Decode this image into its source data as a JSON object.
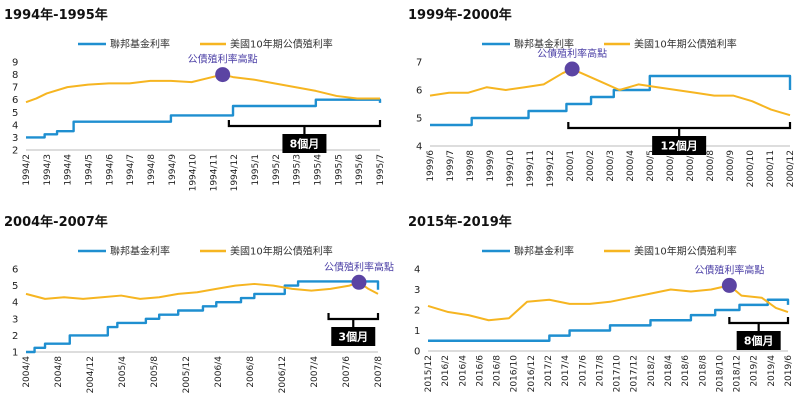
{
  "colors": {
    "fed": "#1f8fd0",
    "yield": "#f6b521",
    "peak_marker": "#5b44a3",
    "annotation_text": "#4b3fa6",
    "box_bg": "#000000"
  },
  "chart_data": [
    {
      "type": "line",
      "title": "1994年-1995年",
      "legend_position": "top-center",
      "series": [
        {
          "name": "聯邦基金利率",
          "color": "#1f8fd0",
          "step": true,
          "x": [
            0,
            0.9,
            1.5,
            2.3,
            7.0,
            10.0,
            14.0,
            17.1
          ],
          "values": [
            3.0,
            3.25,
            3.5,
            4.25,
            4.75,
            5.5,
            6.0,
            5.75
          ]
        },
        {
          "name": "美國10年期公債殖利率",
          "color": "#f6b521",
          "x": [
            0,
            0.5,
            1,
            2,
            3,
            4,
            5,
            6,
            7,
            8,
            9,
            9.5,
            10,
            11,
            12,
            13,
            14,
            15,
            16,
            17.1
          ],
          "values": [
            5.8,
            6.1,
            6.5,
            7.0,
            7.2,
            7.3,
            7.3,
            7.5,
            7.5,
            7.4,
            7.8,
            8.0,
            7.8,
            7.6,
            7.3,
            7.0,
            6.7,
            6.3,
            6.1,
            6.1
          ]
        }
      ],
      "ylim": [
        2,
        9
      ],
      "yticks": [
        2,
        3,
        4,
        5,
        6,
        7,
        8,
        9
      ],
      "xlim": [
        0,
        17.1
      ],
      "xtick_labels": [
        "1994/2",
        "1994/3",
        "1994/4",
        "1994/5",
        "1994/6",
        "1994/7",
        "1994/8",
        "1994/9",
        "1994/10",
        "1994/11",
        "1994/12",
        "1995/1",
        "1995/2",
        "1995/3",
        "1995/4",
        "1995/5",
        "1995/6",
        "1995/7"
      ],
      "peak": {
        "label": "公債殖利率高點",
        "x": 9.5,
        "y": 8.0
      },
      "bracket": {
        "x_start": 9.8,
        "x_end": 17.1,
        "label": "8個月"
      }
    },
    {
      "type": "line",
      "title": "1999年-2000年",
      "legend_position": "top-center",
      "series": [
        {
          "name": "聯邦基金利率",
          "color": "#1f8fd0",
          "step": true,
          "x": [
            0,
            2.2,
            5.2,
            7.2,
            8.5,
            9.7,
            11.6,
            19.0
          ],
          "values": [
            4.75,
            5.0,
            5.25,
            5.5,
            5.75,
            6.0,
            6.5,
            6.0
          ]
        },
        {
          "name": "美國10年期公債殖利率",
          "color": "#f6b521",
          "x": [
            0,
            1,
            2,
            3,
            4,
            5,
            6,
            7,
            7.5,
            8,
            9,
            10,
            11,
            12,
            13,
            14,
            15,
            16,
            17,
            18,
            19.0
          ],
          "values": [
            5.8,
            5.9,
            5.9,
            6.1,
            6.0,
            6.1,
            6.2,
            6.6,
            6.75,
            6.6,
            6.3,
            6.0,
            6.2,
            6.1,
            6.0,
            5.9,
            5.8,
            5.8,
            5.6,
            5.3,
            5.1
          ]
        }
      ],
      "ylim": [
        4,
        7
      ],
      "yticks": [
        4,
        5,
        6,
        7
      ],
      "xlim": [
        0,
        19.0
      ],
      "xtick_labels": [
        "1999/6",
        "1999/7",
        "1999/8",
        "1999/9",
        "1999/10",
        "1999/11",
        "1999/12",
        "2000/1",
        "2000/2",
        "2000/3",
        "2000/4",
        "2000/5",
        "2000/6",
        "2000/7",
        "2000/8",
        "2000/9",
        "2000/10",
        "2000/11",
        "2000/12"
      ],
      "peak": {
        "label": "公債殖利率高點",
        "x": 7.5,
        "y": 6.75
      },
      "bracket": {
        "x_start": 7.3,
        "x_end": 19.0,
        "label": "12個月"
      }
    },
    {
      "type": "line",
      "title": "2004年-2007年",
      "legend_position": "top-center",
      "series": [
        {
          "name": "聯邦基金利率",
          "color": "#1f8fd0",
          "step": true,
          "x": [
            0,
            0.45,
            1.0,
            2.3,
            4.3,
            4.8,
            6.3,
            7.0,
            8.0,
            9.3,
            10.0,
            11.3,
            12.0,
            13.6,
            14.3,
            18.0,
            18.5
          ],
          "values": [
            1.0,
            1.25,
            1.5,
            2.0,
            2.5,
            2.75,
            3.0,
            3.25,
            3.5,
            3.75,
            4.0,
            4.25,
            4.5,
            5.0,
            5.25,
            5.25,
            4.75
          ]
        },
        {
          "name": "美國10年期公債殖利率",
          "color": "#f6b521",
          "x": [
            0,
            1,
            2,
            3,
            4,
            5,
            6,
            7,
            8,
            9,
            10,
            11,
            12,
            13,
            14,
            15,
            16,
            17,
            17.5,
            18,
            18.5
          ],
          "values": [
            4.5,
            4.2,
            4.3,
            4.2,
            4.3,
            4.4,
            4.2,
            4.3,
            4.5,
            4.6,
            4.8,
            5.0,
            5.1,
            5.0,
            4.8,
            4.7,
            4.8,
            5.0,
            5.2,
            4.8,
            4.5
          ]
        }
      ],
      "ylim": [
        1,
        6
      ],
      "yticks": [
        1,
        2,
        3,
        4,
        5,
        6
      ],
      "xlim": [
        0,
        18.5
      ],
      "xtick_labels": [
        "2004/4",
        "2004/8",
        "2004/12",
        "2005/4",
        "2005/8",
        "2005/12",
        "2006/4",
        "2006/8",
        "2006/12",
        "2007/4",
        "2007/6",
        "2007/8"
      ],
      "peak": {
        "label": "公債殖利率高點",
        "x": 17.5,
        "y": 5.2
      },
      "bracket": {
        "x_start": 15.9,
        "x_end": 18.5,
        "label": "3個月"
      }
    },
    {
      "type": "line",
      "title": "2015年-2019年",
      "legend_position": "top-center",
      "series": [
        {
          "name": "聯邦基金利率",
          "color": "#1f8fd0",
          "step": true,
          "x": [
            0,
            4.9,
            6.0,
            7.0,
            9.0,
            11.0,
            13.0,
            14.2,
            15.4,
            16.8,
            17.8
          ],
          "values": [
            0.5,
            0.5,
            0.75,
            1.0,
            1.25,
            1.5,
            1.75,
            2.0,
            2.25,
            2.5,
            2.25
          ]
        },
        {
          "name": "美國10年期公債殖利率",
          "color": "#f6b521",
          "x": [
            0,
            1,
            2,
            3,
            4,
            4.9,
            6,
            7,
            8,
            9,
            10,
            11,
            12,
            13,
            14,
            14.9,
            15.5,
            16.5,
            17.2,
            17.8
          ],
          "values": [
            2.2,
            1.9,
            1.75,
            1.5,
            1.6,
            2.4,
            2.5,
            2.3,
            2.3,
            2.4,
            2.6,
            2.8,
            3.0,
            2.9,
            3.0,
            3.2,
            2.7,
            2.6,
            2.1,
            1.9
          ]
        }
      ],
      "ylim": [
        0,
        4
      ],
      "yticks": [
        0,
        1,
        2,
        3,
        4
      ],
      "xlim": [
        0,
        17.8
      ],
      "xtick_labels": [
        "2015/12",
        "2016/2",
        "2016/4",
        "2016/6",
        "2016/8",
        "2016/10",
        "2016/12",
        "2017/2",
        "2017/4",
        "2017/6",
        "2017/8",
        "2017/10",
        "2017/12",
        "2018/2",
        "2018/4",
        "2018/6",
        "2018/8",
        "2018/10",
        "2018/12",
        "2019/2",
        "2019/4",
        "2019/6"
      ],
      "peak": {
        "label": "公債殖利率高點",
        "x": 14.9,
        "y": 3.2
      },
      "bracket": {
        "x_start": 14.9,
        "x_end": 17.8,
        "label": "8個月"
      }
    }
  ]
}
